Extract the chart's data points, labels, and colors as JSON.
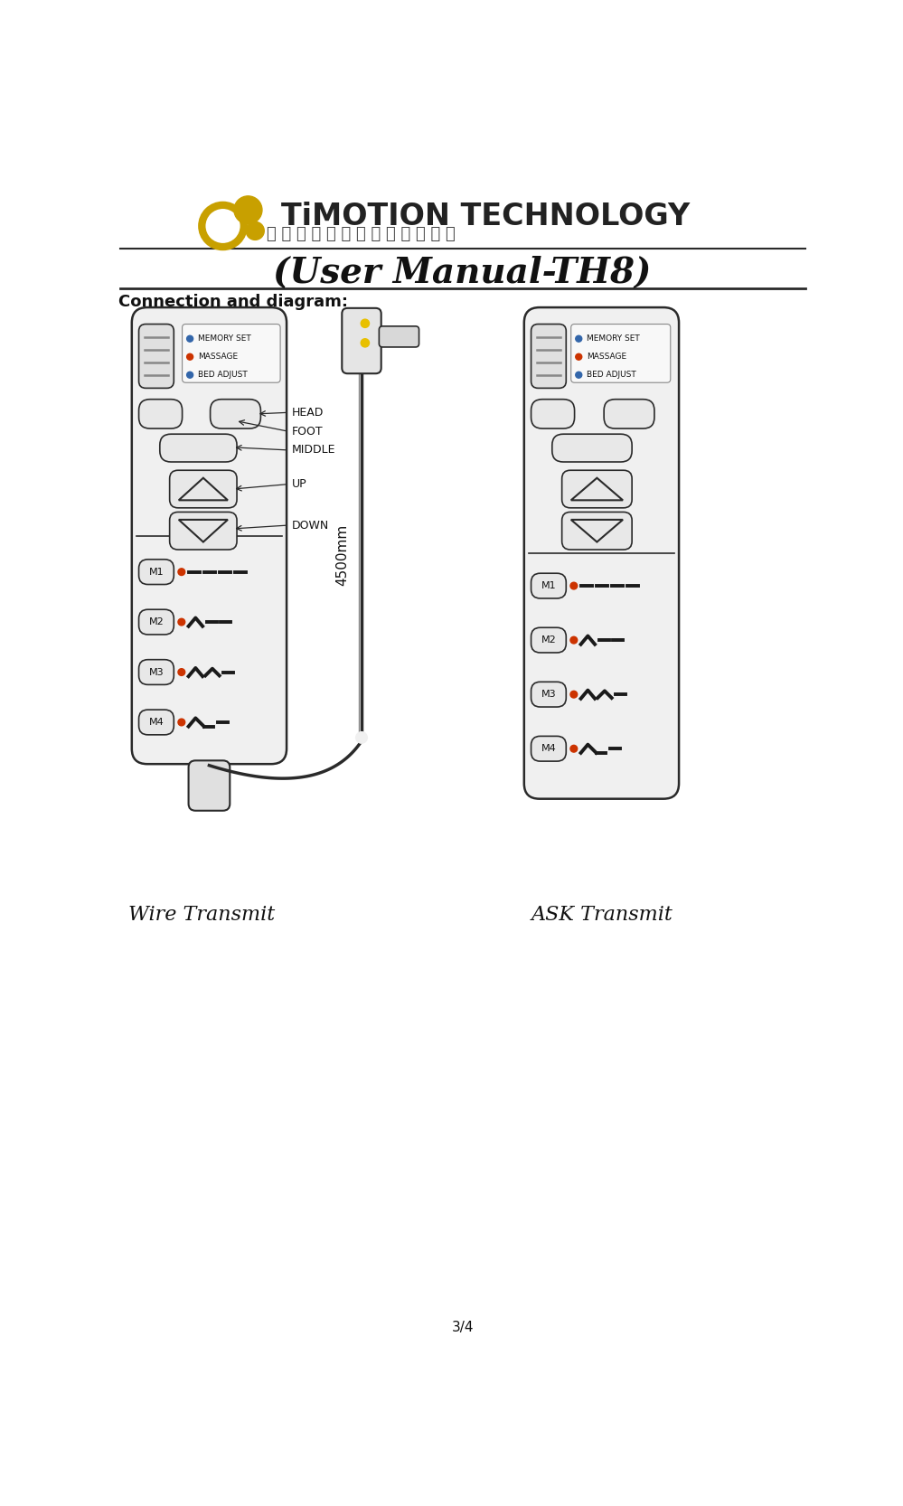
{
  "title": "(User Manual-TH8)",
  "subtitle": "Connection and diagram:",
  "page_num": "3/4",
  "wire_transmit_label": "Wire Transmit",
  "ask_transmit_label": "ASK Transmit",
  "cable_length": "4500mm",
  "bg_color": "#ffffff",
  "line_color": "#2a2a2a",
  "light_gray": "#cccccc",
  "mid_gray": "#888888",
  "dark_gray": "#444444",
  "orange_color": "#cc3300",
  "blue_color": "#3366aa",
  "yellow_color": "#e8c000",
  "memory_set_label": "MEMORY SET",
  "massage_label": "MASSAGE",
  "bed_adjust_label": "BED ADJUST",
  "head_label": "HEAD",
  "foot_label": "FOOT",
  "middle_label": "MIDDLE",
  "up_label": "UP",
  "down_label": "DOWN",
  "m_labels": [
    "M1",
    "M2",
    "M3",
    "M4"
  ],
  "logo_gold": "#c8a000",
  "logo_dark": "#333333"
}
